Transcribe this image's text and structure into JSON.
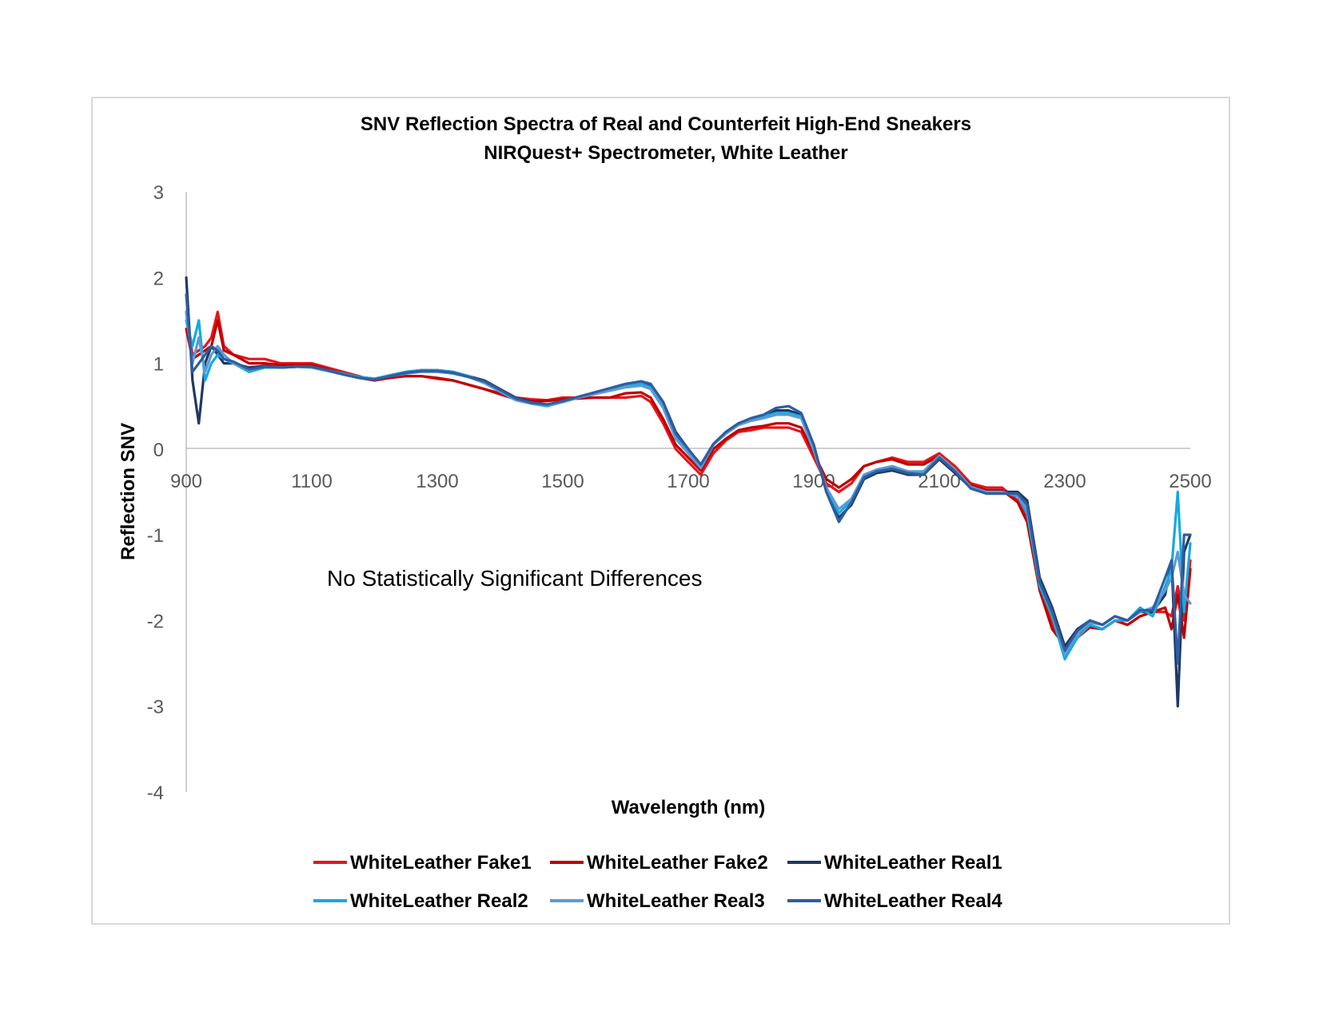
{
  "chart_data": {
    "type": "line",
    "title": "SNV Reflection Spectra of Real and Counterfeit High-End Sneakers",
    "subtitle": "NIRQuest+ Spectrometer, White Leather",
    "xlabel": "Wavelength (nm)",
    "ylabel": "Reflection SNV",
    "xlim": [
      900,
      2500
    ],
    "ylim": [
      -4,
      3
    ],
    "x_ticks": [
      900,
      1100,
      1300,
      1500,
      1700,
      1900,
      2100,
      2300,
      2500
    ],
    "y_ticks": [
      3,
      2,
      1,
      0,
      -1,
      -2,
      -3,
      -4
    ],
    "annotation": "No Statistically Significant Differences",
    "legend_position": "bottom",
    "x": [
      900,
      910,
      920,
      930,
      940,
      950,
      960,
      975,
      1000,
      1025,
      1050,
      1075,
      1100,
      1125,
      1150,
      1175,
      1200,
      1225,
      1250,
      1275,
      1300,
      1325,
      1350,
      1375,
      1400,
      1425,
      1450,
      1475,
      1500,
      1525,
      1550,
      1575,
      1600,
      1625,
      1640,
      1660,
      1680,
      1700,
      1720,
      1740,
      1760,
      1780,
      1800,
      1820,
      1840,
      1860,
      1880,
      1900,
      1920,
      1940,
      1960,
      1980,
      2000,
      2025,
      2050,
      2075,
      2100,
      2125,
      2150,
      2175,
      2200,
      2225,
      2240,
      2260,
      2280,
      2300,
      2320,
      2340,
      2360,
      2380,
      2400,
      2420,
      2440,
      2460,
      2470,
      2480,
      2490,
      2500
    ],
    "series": [
      {
        "name": "WhiteLeather Fake1",
        "color": "#e8141b",
        "values": [
          1.6,
          1.1,
          1.15,
          1.2,
          1.3,
          1.6,
          1.2,
          1.1,
          1.05,
          1.05,
          1.0,
          1.0,
          1.0,
          0.95,
          0.9,
          0.85,
          0.8,
          0.85,
          0.85,
          0.85,
          0.82,
          0.8,
          0.75,
          0.7,
          0.65,
          0.6,
          0.58,
          0.57,
          0.6,
          0.6,
          0.6,
          0.6,
          0.6,
          0.62,
          0.55,
          0.3,
          0.0,
          -0.15,
          -0.3,
          -0.05,
          0.1,
          0.2,
          0.22,
          0.25,
          0.25,
          0.25,
          0.2,
          -0.1,
          -0.4,
          -0.5,
          -0.4,
          -0.2,
          -0.15,
          -0.1,
          -0.15,
          -0.15,
          -0.05,
          -0.2,
          -0.4,
          -0.45,
          -0.45,
          -0.6,
          -0.8,
          -1.6,
          -2.05,
          -2.3,
          -2.15,
          -2.05,
          -2.1,
          -2.0,
          -2.05,
          -1.95,
          -1.9,
          -1.9,
          -1.95,
          -1.6,
          -2.0,
          -1.3
        ]
      },
      {
        "name": "WhiteLeather Fake2",
        "color": "#c00000",
        "values": [
          1.4,
          1.05,
          1.1,
          1.15,
          1.2,
          1.5,
          1.15,
          1.1,
          1.0,
          1.0,
          0.98,
          0.98,
          0.98,
          0.93,
          0.88,
          0.83,
          0.8,
          0.83,
          0.85,
          0.85,
          0.83,
          0.8,
          0.75,
          0.7,
          0.64,
          0.58,
          0.56,
          0.56,
          0.58,
          0.59,
          0.6,
          0.6,
          0.65,
          0.66,
          0.6,
          0.35,
          0.05,
          -0.1,
          -0.25,
          0.0,
          0.12,
          0.22,
          0.25,
          0.27,
          0.3,
          0.3,
          0.25,
          -0.05,
          -0.35,
          -0.45,
          -0.35,
          -0.2,
          -0.15,
          -0.12,
          -0.18,
          -0.18,
          -0.08,
          -0.25,
          -0.42,
          -0.48,
          -0.48,
          -0.62,
          -0.85,
          -1.65,
          -2.1,
          -2.3,
          -2.2,
          -2.08,
          -2.1,
          -2.0,
          -2.05,
          -1.95,
          -1.9,
          -1.85,
          -2.1,
          -1.7,
          -2.2,
          -1.4
        ]
      },
      {
        "name": "WhiteLeather Real1",
        "color": "#1f3864",
        "values": [
          2.0,
          0.8,
          0.3,
          1.0,
          1.2,
          1.1,
          1.0,
          1.0,
          0.95,
          0.97,
          0.95,
          0.96,
          0.96,
          0.92,
          0.88,
          0.84,
          0.82,
          0.86,
          0.9,
          0.92,
          0.92,
          0.9,
          0.85,
          0.8,
          0.7,
          0.6,
          0.55,
          0.52,
          0.55,
          0.6,
          0.65,
          0.7,
          0.75,
          0.78,
          0.75,
          0.55,
          0.2,
          0.0,
          -0.2,
          0.05,
          0.2,
          0.3,
          0.35,
          0.38,
          0.45,
          0.45,
          0.4,
          0.05,
          -0.5,
          -0.8,
          -0.65,
          -0.35,
          -0.28,
          -0.25,
          -0.3,
          -0.3,
          -0.12,
          -0.28,
          -0.45,
          -0.5,
          -0.5,
          -0.5,
          -0.6,
          -1.5,
          -1.85,
          -2.3,
          -2.1,
          -2.0,
          -2.05,
          -1.95,
          -2.0,
          -1.9,
          -1.9,
          -1.7,
          -1.3,
          -3.0,
          -1.2,
          -1.0
        ]
      },
      {
        "name": "WhiteLeather Real2",
        "color": "#17a9e1",
        "values": [
          1.5,
          1.2,
          1.5,
          0.8,
          1.0,
          1.1,
          1.05,
          1.0,
          0.9,
          0.95,
          0.95,
          0.96,
          0.96,
          0.92,
          0.88,
          0.84,
          0.82,
          0.86,
          0.9,
          0.92,
          0.92,
          0.9,
          0.85,
          0.78,
          0.68,
          0.58,
          0.53,
          0.5,
          0.55,
          0.6,
          0.65,
          0.7,
          0.75,
          0.76,
          0.72,
          0.5,
          0.15,
          -0.05,
          -0.2,
          0.05,
          0.2,
          0.3,
          0.35,
          0.38,
          0.42,
          0.42,
          0.38,
          0.0,
          -0.45,
          -0.75,
          -0.6,
          -0.32,
          -0.25,
          -0.22,
          -0.28,
          -0.28,
          -0.1,
          -0.25,
          -0.45,
          -0.5,
          -0.5,
          -0.55,
          -0.75,
          -1.6,
          -1.95,
          -2.45,
          -2.2,
          -2.05,
          -2.1,
          -2.0,
          -2.0,
          -1.85,
          -1.95,
          -1.6,
          -1.4,
          -0.5,
          -1.9,
          -1.1
        ]
      },
      {
        "name": "WhiteLeather Real3",
        "color": "#5b9bd5",
        "values": [
          1.6,
          1.0,
          1.3,
          0.9,
          1.1,
          1.2,
          1.1,
          1.0,
          0.92,
          0.96,
          0.95,
          0.96,
          0.95,
          0.91,
          0.87,
          0.83,
          0.81,
          0.85,
          0.88,
          0.9,
          0.9,
          0.88,
          0.84,
          0.77,
          0.67,
          0.57,
          0.53,
          0.51,
          0.55,
          0.6,
          0.64,
          0.68,
          0.72,
          0.74,
          0.7,
          0.48,
          0.12,
          -0.05,
          -0.22,
          0.05,
          0.18,
          0.28,
          0.33,
          0.36,
          0.4,
          0.4,
          0.36,
          -0.02,
          -0.45,
          -0.7,
          -0.58,
          -0.3,
          -0.24,
          -0.2,
          -0.26,
          -0.26,
          -0.08,
          -0.24,
          -0.44,
          -0.5,
          -0.5,
          -0.55,
          -0.7,
          -1.55,
          -1.9,
          -2.4,
          -2.15,
          -2.02,
          -2.05,
          -1.95,
          -2.0,
          -1.9,
          -1.85,
          -1.65,
          -1.5,
          -1.2,
          -1.7,
          -1.8
        ]
      },
      {
        "name": "WhiteLeather Real4",
        "color": "#2e5e9e",
        "values": [
          1.8,
          0.9,
          1.0,
          1.1,
          1.2,
          1.15,
          1.05,
          1.02,
          0.93,
          0.96,
          0.95,
          0.96,
          0.96,
          0.92,
          0.87,
          0.83,
          0.81,
          0.85,
          0.89,
          0.91,
          0.91,
          0.89,
          0.84,
          0.79,
          0.69,
          0.59,
          0.54,
          0.52,
          0.56,
          0.61,
          0.66,
          0.71,
          0.76,
          0.79,
          0.76,
          0.55,
          0.18,
          0.0,
          -0.18,
          0.06,
          0.2,
          0.3,
          0.36,
          0.4,
          0.48,
          0.5,
          0.42,
          0.05,
          -0.5,
          -0.85,
          -0.62,
          -0.33,
          -0.26,
          -0.23,
          -0.28,
          -0.3,
          -0.1,
          -0.26,
          -0.46,
          -0.52,
          -0.52,
          -0.52,
          -0.65,
          -1.55,
          -1.9,
          -2.35,
          -2.12,
          -2.0,
          -2.05,
          -1.95,
          -2.0,
          -1.88,
          -1.88,
          -1.5,
          -1.3,
          -2.5,
          -1.0,
          -1.0
        ]
      }
    ]
  }
}
